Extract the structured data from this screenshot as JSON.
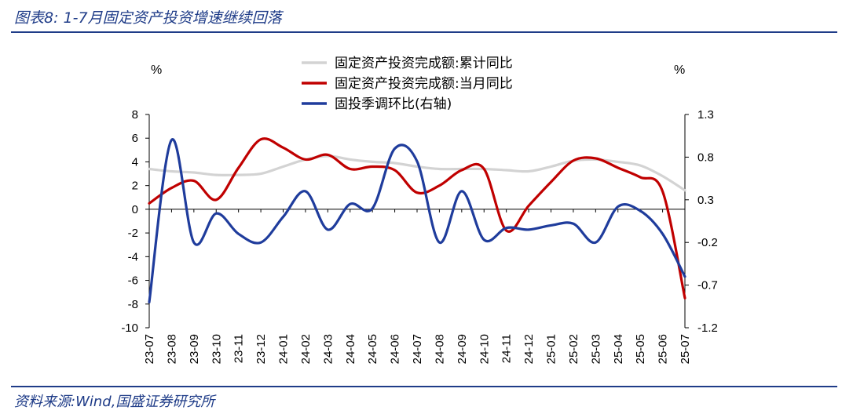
{
  "title": "图表8:  1-7月固定资产投资增速继续回落",
  "source": "资料来源:Wind,国盛证券研究所",
  "chart_data": {
    "type": "line",
    "left_unit": "%",
    "right_unit": "%",
    "categories": [
      "23-07",
      "23-08",
      "23-09",
      "23-10",
      "23-11",
      "23-12",
      "24-01",
      "24-02",
      "24-03",
      "24-04",
      "24-05",
      "24-06",
      "24-07",
      "24-08",
      "24-09",
      "24-10",
      "24-11",
      "24-12",
      "25-01",
      "25-02",
      "25-03",
      "25-04",
      "25-05",
      "25-06",
      "25-07"
    ],
    "ylim_left": [
      -10,
      8
    ],
    "yticks_left": [
      8,
      6,
      4,
      2,
      0,
      -2,
      -4,
      -6,
      -8,
      -10
    ],
    "ylim_right": [
      -1.2,
      1.3
    ],
    "yticks_right": [
      "1.3",
      "0.8",
      "0.3",
      "-0.2",
      "-0.7",
      "-1.2"
    ],
    "series": [
      {
        "name": "固定资产投资完成额:累计同比",
        "axis": "left",
        "color": "#d3d3d3",
        "values": [
          3.4,
          3.2,
          3.1,
          2.9,
          2.9,
          3.0,
          3.6,
          4.2,
          4.5,
          4.2,
          4.0,
          3.9,
          3.6,
          3.4,
          3.4,
          3.4,
          3.3,
          3.2,
          3.6,
          4.1,
          4.2,
          4.0,
          3.7,
          2.8,
          1.6
        ]
      },
      {
        "name": "固定资产投资完成额:当月同比",
        "axis": "left",
        "color": "#c00000",
        "values": [
          0.5,
          1.8,
          2.4,
          0.8,
          3.5,
          5.9,
          5.2,
          4.2,
          4.6,
          3.4,
          3.6,
          3.3,
          1.4,
          2.0,
          3.3,
          3.4,
          -1.8,
          0.3,
          2.3,
          4.1,
          4.3,
          3.5,
          2.7,
          1.5,
          -7.5
        ]
      },
      {
        "name": "固投季调环比(右轴)",
        "axis": "right",
        "color": "#1f3c9c",
        "values": [
          -0.9,
          1.0,
          -0.2,
          0.14,
          -0.1,
          -0.2,
          0.1,
          0.4,
          -0.05,
          0.25,
          0.2,
          0.9,
          0.75,
          -0.2,
          0.4,
          -0.17,
          -0.03,
          -0.05,
          0.0,
          0.02,
          -0.2,
          0.22,
          0.17,
          -0.1,
          -0.6
        ]
      }
    ],
    "legend_position": "top"
  }
}
